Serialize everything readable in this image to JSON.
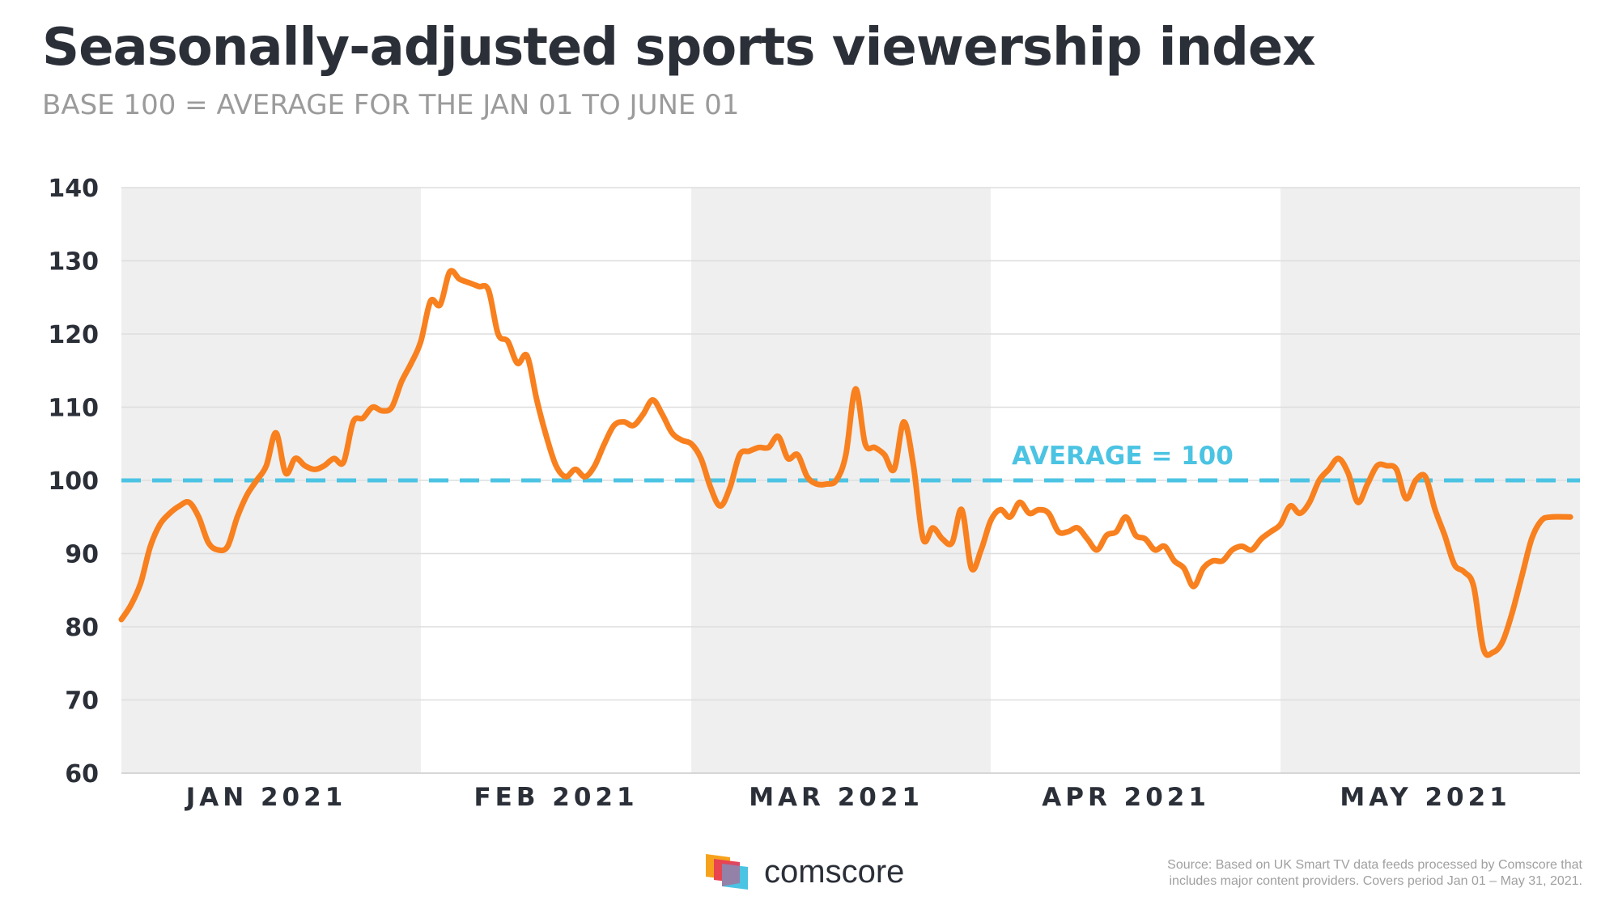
{
  "header": {
    "title": "Seasonally-adjusted sports viewership index",
    "subtitle": "BASE 100 = AVERAGE FOR THE JAN 01 TO JUNE 01"
  },
  "chart_data": {
    "type": "line",
    "title": "Seasonally-adjusted sports viewership index",
    "subtitle": "BASE 100 = AVERAGE FOR THE JAN 01 TO JUNE 01",
    "xlabel": "",
    "ylabel": "",
    "ylim": [
      60,
      140
    ],
    "yticks": [
      140,
      130,
      120,
      110,
      100,
      90,
      80,
      70,
      60
    ],
    "x_range": [
      "2021-01-01",
      "2021-05-31"
    ],
    "month_labels": [
      {
        "date": "2021-01-16",
        "label": "JAN 2021"
      },
      {
        "date": "2021-02-15",
        "label": "FEB 2021"
      },
      {
        "date": "2021-03-16",
        "label": "MAR 2021"
      },
      {
        "date": "2021-04-15",
        "label": "APR 2021"
      },
      {
        "date": "2021-05-16",
        "label": "MAY 2021"
      }
    ],
    "shaded_months": [
      "JAN 2021",
      "MAR 2021",
      "MAY 2021"
    ],
    "grid": true,
    "reference_line": {
      "value": 100,
      "label": "AVERAGE = 100",
      "color": "#4bc3e3"
    },
    "series": [
      {
        "color": "#f8801e",
        "points": [
          [
            "2021-01-01",
            81
          ],
          [
            "2021-01-02",
            83
          ],
          [
            "2021-01-03",
            86
          ],
          [
            "2021-01-04",
            91
          ],
          [
            "2021-01-05",
            94
          ],
          [
            "2021-01-06",
            95.5
          ],
          [
            "2021-01-07",
            96.5
          ],
          [
            "2021-01-08",
            97
          ],
          [
            "2021-01-09",
            95
          ],
          [
            "2021-01-10",
            91.5
          ],
          [
            "2021-01-11",
            90.5
          ],
          [
            "2021-01-12",
            91
          ],
          [
            "2021-01-13",
            95
          ],
          [
            "2021-01-14",
            98
          ],
          [
            "2021-01-15",
            100
          ],
          [
            "2021-01-16",
            102
          ],
          [
            "2021-01-17",
            106.5
          ],
          [
            "2021-01-18",
            101
          ],
          [
            "2021-01-19",
            103
          ],
          [
            "2021-01-20",
            102
          ],
          [
            "2021-01-21",
            101.5
          ],
          [
            "2021-01-22",
            102
          ],
          [
            "2021-01-23",
            103
          ],
          [
            "2021-01-24",
            102.5
          ],
          [
            "2021-01-25",
            108
          ],
          [
            "2021-01-26",
            108.5
          ],
          [
            "2021-01-27",
            110
          ],
          [
            "2021-01-28",
            109.5
          ],
          [
            "2021-01-29",
            110
          ],
          [
            "2021-01-30",
            113.5
          ],
          [
            "2021-01-31",
            116
          ],
          [
            "2021-02-01",
            119
          ],
          [
            "2021-02-02",
            124.5
          ],
          [
            "2021-02-03",
            124
          ],
          [
            "2021-02-04",
            128.5
          ],
          [
            "2021-02-05",
            127.5
          ],
          [
            "2021-02-06",
            127
          ],
          [
            "2021-02-07",
            126.5
          ],
          [
            "2021-02-08",
            126
          ],
          [
            "2021-02-09",
            120
          ],
          [
            "2021-02-10",
            119
          ],
          [
            "2021-02-11",
            116
          ],
          [
            "2021-02-12",
            117
          ],
          [
            "2021-02-13",
            111
          ],
          [
            "2021-02-14",
            106
          ],
          [
            "2021-02-15",
            102
          ],
          [
            "2021-02-16",
            100.5
          ],
          [
            "2021-02-17",
            101.5
          ],
          [
            "2021-02-18",
            100.5
          ],
          [
            "2021-02-19",
            102
          ],
          [
            "2021-02-20",
            105
          ],
          [
            "2021-02-21",
            107.5
          ],
          [
            "2021-02-22",
            108
          ],
          [
            "2021-02-23",
            107.5
          ],
          [
            "2021-02-24",
            109
          ],
          [
            "2021-02-25",
            111
          ],
          [
            "2021-02-26",
            109
          ],
          [
            "2021-02-27",
            106.5
          ],
          [
            "2021-02-28",
            105.5
          ],
          [
            "2021-03-01",
            105
          ],
          [
            "2021-03-02",
            103
          ],
          [
            "2021-03-03",
            99
          ],
          [
            "2021-03-04",
            96.5
          ],
          [
            "2021-03-05",
            99
          ],
          [
            "2021-03-06",
            103.5
          ],
          [
            "2021-03-07",
            104
          ],
          [
            "2021-03-08",
            104.5
          ],
          [
            "2021-03-09",
            104.5
          ],
          [
            "2021-03-10",
            106
          ],
          [
            "2021-03-11",
            103
          ],
          [
            "2021-03-12",
            103.5
          ],
          [
            "2021-03-13",
            100.5
          ],
          [
            "2021-03-14",
            99.5
          ],
          [
            "2021-03-15",
            99.5
          ],
          [
            "2021-03-16",
            100
          ],
          [
            "2021-03-17",
            103.5
          ],
          [
            "2021-03-18",
            112.5
          ],
          [
            "2021-03-19",
            105
          ],
          [
            "2021-03-20",
            104.5
          ],
          [
            "2021-03-21",
            103.5
          ],
          [
            "2021-03-22",
            101.5
          ],
          [
            "2021-03-23",
            108
          ],
          [
            "2021-03-24",
            102
          ],
          [
            "2021-03-25",
            92
          ],
          [
            "2021-03-26",
            93.5
          ],
          [
            "2021-03-27",
            92
          ],
          [
            "2021-03-28",
            91.5
          ],
          [
            "2021-03-29",
            96
          ],
          [
            "2021-03-30",
            88
          ],
          [
            "2021-03-31",
            90.5
          ],
          [
            "2021-04-01",
            94.5
          ],
          [
            "2021-04-02",
            96
          ],
          [
            "2021-04-03",
            95
          ],
          [
            "2021-04-04",
            97
          ],
          [
            "2021-04-05",
            95.5
          ],
          [
            "2021-04-06",
            96
          ],
          [
            "2021-04-07",
            95.5
          ],
          [
            "2021-04-08",
            93
          ],
          [
            "2021-04-09",
            93
          ],
          [
            "2021-04-10",
            93.5
          ],
          [
            "2021-04-11",
            92
          ],
          [
            "2021-04-12",
            90.5
          ],
          [
            "2021-04-13",
            92.5
          ],
          [
            "2021-04-14",
            93
          ],
          [
            "2021-04-15",
            95
          ],
          [
            "2021-04-16",
            92.5
          ],
          [
            "2021-04-17",
            92
          ],
          [
            "2021-04-18",
            90.5
          ],
          [
            "2021-04-19",
            91
          ],
          [
            "2021-04-20",
            89
          ],
          [
            "2021-04-21",
            88
          ],
          [
            "2021-04-22",
            85.5
          ],
          [
            "2021-04-23",
            88
          ],
          [
            "2021-04-24",
            89
          ],
          [
            "2021-04-25",
            89
          ],
          [
            "2021-04-26",
            90.5
          ],
          [
            "2021-04-27",
            91
          ],
          [
            "2021-04-28",
            90.5
          ],
          [
            "2021-04-29",
            92
          ],
          [
            "2021-04-30",
            93
          ],
          [
            "2021-05-01",
            94
          ],
          [
            "2021-05-02",
            96.5
          ],
          [
            "2021-05-03",
            95.5
          ],
          [
            "2021-05-04",
            97
          ],
          [
            "2021-05-05",
            100
          ],
          [
            "2021-05-06",
            101.5
          ],
          [
            "2021-05-07",
            103
          ],
          [
            "2021-05-08",
            101
          ],
          [
            "2021-05-09",
            97
          ],
          [
            "2021-05-10",
            99.5
          ],
          [
            "2021-05-11",
            102
          ],
          [
            "2021-05-12",
            102
          ],
          [
            "2021-05-13",
            101.5
          ],
          [
            "2021-05-14",
            97.5
          ],
          [
            "2021-05-15",
            100
          ],
          [
            "2021-05-16",
            100.5
          ],
          [
            "2021-05-17",
            96
          ],
          [
            "2021-05-18",
            92.5
          ],
          [
            "2021-05-19",
            88.5
          ],
          [
            "2021-05-20",
            87.5
          ],
          [
            "2021-05-21",
            85.5
          ],
          [
            "2021-05-22",
            77
          ],
          [
            "2021-05-23",
            76.5
          ],
          [
            "2021-05-24",
            78
          ],
          [
            "2021-05-25",
            82
          ],
          [
            "2021-05-26",
            87
          ],
          [
            "2021-05-27",
            92
          ],
          [
            "2021-05-28",
            94.5
          ],
          [
            "2021-05-29",
            95
          ],
          [
            "2021-05-31",
            95
          ]
        ]
      }
    ]
  },
  "footer": {
    "brand": "comscore",
    "source_line1": "Source: Based on UK Smart TV data feeds processed by Comscore that",
    "source_line2": "includes major content providers. Covers period Jan 01 – May 31, 2021."
  }
}
